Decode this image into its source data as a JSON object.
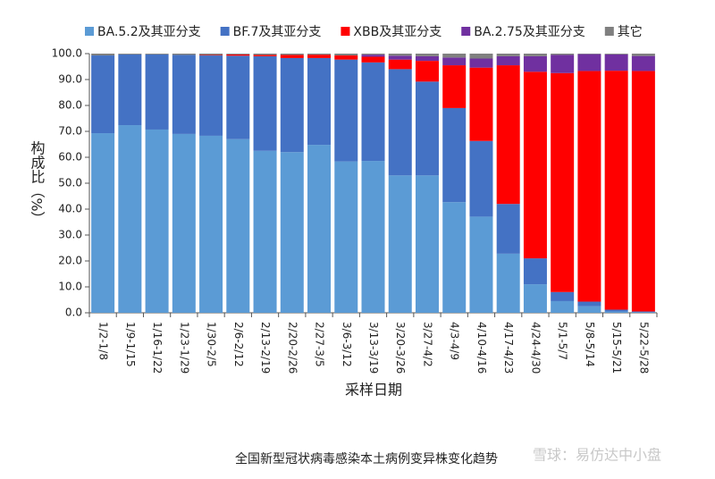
{
  "chart_data": {
    "type": "stacked_bar",
    "x_label": "采样日期",
    "y_label": "构成比（%）",
    "caption": "全国新型冠状病毒感染本土病例变异株变化趋势",
    "watermark": "雪球：易仿达中小盘",
    "legend": "top",
    "categories": [
      "1/2-1/8",
      "1/9-1/15",
      "1/16-1/22",
      "1/23-1/29",
      "1/30-2/5",
      "2/6-2/12",
      "2/13-2/19",
      "2/20-2/26",
      "2/27-3/5",
      "3/6-3/12",
      "3/13-3/19",
      "3/20-3/26",
      "3/27-4/2",
      "4/3-4/9",
      "4/10-4/16",
      "4/17-4/23",
      "4/24-4/30",
      "5/1-5/7",
      "5/8-5/14",
      "5/15-5/21",
      "5/22-5/28"
    ],
    "series": [
      {
        "name": "BA.5.2及其亚分支",
        "color": "#5b9bd5",
        "values": [
          69.3,
          72.4,
          70.7,
          69.0,
          68.3,
          67.0,
          62.5,
          62.0,
          64.8,
          58.4,
          58.6,
          53.0,
          53.0,
          42.7,
          37.1,
          22.8,
          11.0,
          4.5,
          2.5,
          0.5,
          0.2
        ]
      },
      {
        "name": "BF.7及其亚分支",
        "color": "#4472c4",
        "values": [
          30.0,
          27.3,
          29.0,
          30.5,
          31.0,
          32.2,
          36.5,
          36.3,
          33.5,
          39.3,
          38.0,
          41.0,
          36.2,
          36.3,
          29.2,
          19.2,
          10.0,
          3.5,
          1.8,
          0.7,
          0.3
        ]
      },
      {
        "name": "XBB及其亚分支",
        "color": "#ff0000",
        "values": [
          0,
          0,
          0,
          0,
          0.2,
          0.5,
          0.5,
          1.2,
          1.3,
          1.6,
          2.2,
          3.7,
          8.0,
          16.5,
          28.3,
          53.5,
          72.0,
          84.5,
          89.0,
          92.2,
          92.8
        ]
      },
      {
        "name": "BA.2.75及其亚分支",
        "color": "#7030a0",
        "values": [
          0,
          0,
          0,
          0,
          0,
          0,
          0,
          0,
          0,
          0,
          0.8,
          1.5,
          1.8,
          3.0,
          3.5,
          3.5,
          6.0,
          7.0,
          6.5,
          6.3,
          5.8
        ]
      },
      {
        "name": "其它",
        "color": "#808080",
        "values": [
          0.7,
          0.3,
          0.3,
          0.5,
          0.5,
          0.3,
          0.5,
          0.5,
          0.4,
          0.7,
          0.4,
          0.8,
          1.0,
          1.5,
          1.9,
          1.0,
          1.0,
          0.5,
          0.2,
          0.3,
          0.9
        ]
      }
    ],
    "ylim": [
      0,
      100
    ],
    "yticks": [
      {
        "value": 0,
        "label": "0.0"
      },
      {
        "value": 10,
        "label": "10.0"
      },
      {
        "value": 20,
        "label": "20.0"
      },
      {
        "value": 30,
        "label": "30.0"
      },
      {
        "value": 40,
        "label": "40.0"
      },
      {
        "value": 50,
        "label": "50.0"
      },
      {
        "value": 60,
        "label": "60.0"
      },
      {
        "value": 70,
        "label": "70.0"
      },
      {
        "value": 80,
        "label": "80.0"
      },
      {
        "value": 90,
        "label": "90.0"
      },
      {
        "value": 100,
        "label": "100.0"
      }
    ]
  }
}
